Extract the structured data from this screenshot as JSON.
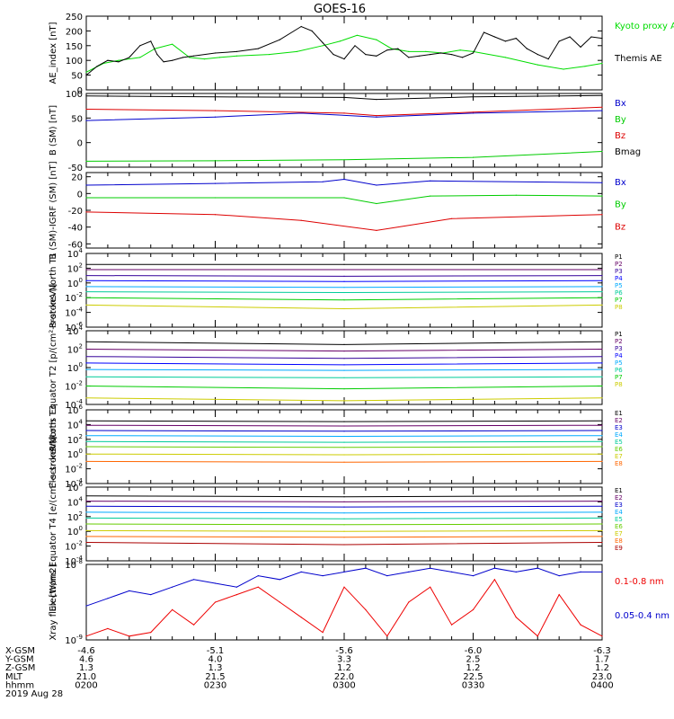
{
  "title": "GOES-16",
  "footer": {
    "rows": [
      {
        "label": "X-GSM",
        "values": [
          "-4.6",
          "-5.1",
          "-5.6",
          "-6.0",
          "-6.3"
        ]
      },
      {
        "label": "Y-GSM",
        "values": [
          "4.6",
          "4.0",
          "3.3",
          "2.5",
          "1.7"
        ]
      },
      {
        "label": "Z-GSM",
        "values": [
          "1.3",
          "1.3",
          "1.2",
          "1.2",
          "1.2"
        ]
      },
      {
        "label": "MLT",
        "values": [
          "21.0",
          "21.5",
          "22.0",
          "22.5",
          "23.0"
        ]
      },
      {
        "label": "hhmm",
        "values": [
          "0200",
          "0230",
          "0300",
          "0330",
          "0400"
        ]
      }
    ],
    "date": "2019 Aug 28"
  },
  "chart_data": [
    {
      "type": "line",
      "ylabel": "AE_index [nT]",
      "ylim": [
        0,
        250
      ],
      "yticks": [
        "0",
        "50",
        "100",
        "150",
        "200",
        "250"
      ],
      "series": [
        {
          "name": "Kyoto proxy AE",
          "color": "#00dd00",
          "x": [
            0,
            8,
            15,
            25,
            32,
            40,
            48,
            55,
            62,
            70,
            85,
            98,
            110,
            118,
            126,
            135,
            142,
            150,
            158,
            166,
            174,
            180,
            195,
            210,
            222,
            232,
            240
          ],
          "values": [
            60,
            90,
            100,
            110,
            140,
            155,
            110,
            105,
            110,
            115,
            120,
            130,
            150,
            165,
            185,
            170,
            140,
            130,
            130,
            125,
            135,
            130,
            110,
            85,
            70,
            80,
            90
          ]
        },
        {
          "name": "Themis AE",
          "color": "#000000",
          "x": [
            0,
            5,
            10,
            15,
            20,
            25,
            30,
            33,
            36,
            40,
            45,
            50,
            60,
            70,
            80,
            90,
            100,
            105,
            110,
            115,
            120,
            125,
            130,
            135,
            140,
            145,
            150,
            155,
            160,
            165,
            170,
            175,
            180,
            185,
            190,
            195,
            200,
            205,
            210,
            215,
            220,
            225,
            230,
            235,
            240
          ],
          "values": [
            50,
            80,
            100,
            95,
            110,
            150,
            165,
            120,
            95,
            100,
            110,
            115,
            125,
            130,
            140,
            170,
            215,
            200,
            160,
            120,
            105,
            150,
            120,
            115,
            135,
            140,
            110,
            115,
            120,
            125,
            120,
            110,
            125,
            195,
            180,
            165,
            175,
            140,
            120,
            105,
            165,
            180,
            145,
            180,
            175
          ]
        }
      ]
    },
    {
      "type": "line",
      "ylabel": "B (SM) [nT]",
      "ylim": [
        -50,
        100
      ],
      "yticks": [
        "-50",
        "0",
        "50",
        "100"
      ],
      "series": [
        {
          "name": "Bx",
          "color": "#0000cc",
          "x": [
            0,
            60,
            100,
            135,
            180,
            240
          ],
          "values": [
            45,
            52,
            60,
            52,
            60,
            65
          ]
        },
        {
          "name": "By",
          "color": "#00cc00",
          "x": [
            0,
            60,
            120,
            180,
            240
          ],
          "values": [
            -38,
            -37,
            -35,
            -30,
            -18
          ]
        },
        {
          "name": "Bz",
          "color": "#dd0000",
          "x": [
            0,
            60,
            120,
            135,
            180,
            240
          ],
          "values": [
            68,
            65,
            60,
            55,
            62,
            72
          ]
        },
        {
          "name": "Bmag",
          "color": "#000000",
          "x": [
            0,
            60,
            120,
            135,
            180,
            240
          ],
          "values": [
            95,
            93,
            92,
            88,
            93,
            96
          ]
        }
      ]
    },
    {
      "type": "line",
      "ylabel": "B (SM)-IGRF (SM) [nT]",
      "ylim": [
        -65,
        25
      ],
      "yticks": [
        "-60",
        "-40",
        "-20",
        "0",
        "20"
      ],
      "series": [
        {
          "name": "Bx",
          "color": "#0000cc",
          "x": [
            0,
            60,
            110,
            120,
            135,
            160,
            240
          ],
          "values": [
            10,
            12,
            14,
            17,
            10,
            15,
            13
          ]
        },
        {
          "name": "By",
          "color": "#00cc00",
          "x": [
            0,
            60,
            120,
            135,
            160,
            200,
            240
          ],
          "values": [
            -5,
            -5,
            -5,
            -12,
            -3,
            -2,
            -3
          ]
        },
        {
          "name": "Bz",
          "color": "#dd0000",
          "x": [
            0,
            60,
            100,
            135,
            170,
            240
          ],
          "values": [
            -22,
            -25,
            -32,
            -44,
            -30,
            -25
          ]
        }
      ]
    },
    {
      "type": "line",
      "ylabel": "Protons North T1",
      "yscale": "log",
      "ylim": [
        -6,
        4
      ],
      "yticks": [
        "10^4",
        "10^2",
        "10^0",
        "10^-2",
        "10^-4",
        "10^-6"
      ],
      "series": [
        {
          "name": "P1",
          "color": "#000000",
          "values": [
            2.5,
            2.5,
            2.5
          ]
        },
        {
          "name": "P2",
          "color": "#660066",
          "values": [
            1.8,
            1.8,
            1.8
          ]
        },
        {
          "name": "P3",
          "color": "#330099",
          "values": [
            1.0,
            0.9,
            1.0
          ]
        },
        {
          "name": "P4",
          "color": "#0000ff",
          "values": [
            0.3,
            0.2,
            0.3
          ]
        },
        {
          "name": "P5",
          "color": "#00aaff",
          "values": [
            -0.5,
            -0.6,
            -0.5
          ]
        },
        {
          "name": "P6",
          "color": "#00cc99",
          "values": [
            -1.2,
            -1.3,
            -1.2
          ]
        },
        {
          "name": "P7",
          "color": "#00cc00",
          "values": [
            -2.0,
            -2.3,
            -2.0
          ]
        },
        {
          "name": "P8",
          "color": "#cccc00",
          "values": [
            -3.0,
            -3.5,
            -3.0
          ]
        }
      ]
    },
    {
      "type": "line",
      "ylabel": "Protons Equator T2 [p/(cm²-s-sr-keV)]",
      "yscale": "log",
      "ylim": [
        -4,
        4
      ],
      "yticks": [
        "10^4",
        "10^2",
        "10^0",
        "10^-2",
        "10^-4"
      ],
      "series": [
        {
          "name": "P1",
          "color": "#000000",
          "values": [
            2.8,
            2.5,
            2.8
          ]
        },
        {
          "name": "P2",
          "color": "#660066",
          "values": [
            2.0,
            1.8,
            2.0
          ]
        },
        {
          "name": "P3",
          "color": "#330099",
          "values": [
            1.2,
            1.0,
            1.2
          ]
        },
        {
          "name": "P4",
          "color": "#0000ff",
          "values": [
            0.5,
            0.3,
            0.5
          ]
        },
        {
          "name": "P5",
          "color": "#00aaff",
          "values": [
            -0.2,
            -0.3,
            -0.2
          ]
        },
        {
          "name": "P6",
          "color": "#00cc99",
          "values": [
            -1.0,
            -1.1,
            -1.0
          ]
        },
        {
          "name": "P7",
          "color": "#00cc00",
          "values": [
            -2.0,
            -2.3,
            -2.0
          ]
        },
        {
          "name": "P8",
          "color": "#cccc00",
          "values": [
            -3.3,
            -3.6,
            -3.3
          ]
        }
      ]
    },
    {
      "type": "line",
      "ylabel": "Electrons North T3",
      "yscale": "log",
      "ylim": [
        -4,
        6
      ],
      "yticks": [
        "10^6",
        "10^4",
        "10^2",
        "10^0",
        "10^-2",
        "10^-4"
      ],
      "series": [
        {
          "name": "E1",
          "color": "#000000",
          "values": [
            4.5,
            4.4,
            4.5
          ]
        },
        {
          "name": "E2",
          "color": "#660066",
          "values": [
            3.9,
            3.8,
            3.9
          ]
        },
        {
          "name": "E3",
          "color": "#0000cc",
          "values": [
            3.2,
            3.1,
            3.2
          ]
        },
        {
          "name": "E4",
          "color": "#00aaff",
          "values": [
            2.5,
            2.4,
            2.5
          ]
        },
        {
          "name": "E5",
          "color": "#00cc99",
          "values": [
            1.7,
            1.6,
            1.7
          ]
        },
        {
          "name": "E6",
          "color": "#66cc00",
          "values": [
            1.0,
            0.9,
            1.0
          ]
        },
        {
          "name": "E7",
          "color": "#cccc00",
          "values": [
            0.0,
            -0.1,
            0.0
          ]
        },
        {
          "name": "E8",
          "color": "#ff6600",
          "values": [
            -1.0,
            -1.1,
            -1.0
          ]
        }
      ]
    },
    {
      "type": "line",
      "ylabel": "Electrons Equator T4 [e/(cm²-s-sr-keV)]",
      "yscale": "log",
      "ylim": [
        -4,
        6
      ],
      "yticks": [
        "10^6",
        "10^4",
        "10^2",
        "10^0",
        "10^-2",
        "10^-4"
      ],
      "series": [
        {
          "name": "E1",
          "color": "#000000",
          "values": [
            4.8,
            4.7,
            4.8
          ]
        },
        {
          "name": "E2",
          "color": "#660066",
          "values": [
            4.1,
            4.0,
            4.1
          ]
        },
        {
          "name": "E3",
          "color": "#0000cc",
          "values": [
            3.4,
            3.3,
            3.4
          ]
        },
        {
          "name": "E4",
          "color": "#00aaff",
          "values": [
            2.6,
            2.5,
            2.6
          ]
        },
        {
          "name": "E5",
          "color": "#00cc99",
          "values": [
            1.8,
            1.7,
            1.8
          ]
        },
        {
          "name": "E6",
          "color": "#66cc00",
          "values": [
            1.0,
            0.9,
            1.0
          ]
        },
        {
          "name": "E7",
          "color": "#cccc00",
          "values": [
            0.1,
            0.0,
            0.1
          ]
        },
        {
          "name": "E8",
          "color": "#ff6600",
          "values": [
            -0.7,
            -0.8,
            -0.7
          ]
        },
        {
          "name": "E9",
          "color": "#aa0000",
          "values": [
            -1.5,
            -1.8,
            -1.5
          ]
        }
      ]
    },
    {
      "type": "line",
      "ylabel": "Xray flux [W/m2]",
      "yscale": "log",
      "ylim": [
        -9,
        -8
      ],
      "yticks": [
        "10^-8",
        "10^-9"
      ],
      "series": [
        {
          "name": "0.1-0.8 nm",
          "color": "#ee0000",
          "x": [
            0,
            10,
            20,
            30,
            40,
            50,
            60,
            70,
            80,
            90,
            100,
            110,
            120,
            130,
            140,
            150,
            160,
            170,
            180,
            190,
            200,
            210,
            220,
            230,
            240
          ],
          "values": [
            -8.95,
            -8.85,
            -8.95,
            -8.9,
            -8.6,
            -8.8,
            -8.5,
            -8.4,
            -8.3,
            -8.5,
            -8.7,
            -8.9,
            -8.3,
            -8.6,
            -8.95,
            -8.5,
            -8.3,
            -8.8,
            -8.6,
            -8.2,
            -8.7,
            -8.95,
            -8.4,
            -8.8,
            -8.95
          ]
        },
        {
          "name": "0.05-0.4 nm",
          "color": "#0000cc",
          "x": [
            0,
            10,
            20,
            30,
            40,
            50,
            60,
            70,
            80,
            90,
            100,
            110,
            120,
            130,
            140,
            150,
            160,
            170,
            180,
            190,
            200,
            210,
            220,
            230,
            240
          ],
          "values": [
            -8.55,
            -8.45,
            -8.35,
            -8.4,
            -8.3,
            -8.2,
            -8.25,
            -8.3,
            -8.15,
            -8.2,
            -8.1,
            -8.15,
            -8.1,
            -8.05,
            -8.15,
            -8.1,
            -8.05,
            -8.1,
            -8.15,
            -8.05,
            -8.1,
            -8.05,
            -8.15,
            -8.1,
            -8.1
          ]
        }
      ]
    }
  ]
}
